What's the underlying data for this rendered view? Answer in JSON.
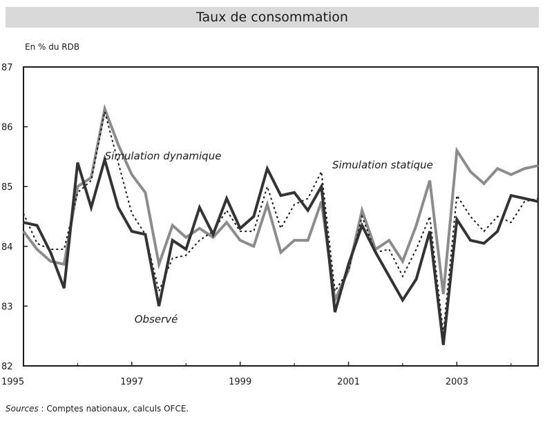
{
  "chart_data": {
    "type": "line",
    "title": "Taux de consommation",
    "ylabel": "En % du RDB",
    "xlabel": "",
    "ylim": [
      82,
      87
    ],
    "xlim": [
      1995,
      2004.5
    ],
    "yticks": [
      82,
      83,
      84,
      85,
      86,
      87
    ],
    "xticks": [
      1995,
      1997,
      1999,
      2001,
      2003
    ],
    "x": [
      1995.0,
      1995.25,
      1995.5,
      1995.75,
      1996.0,
      1996.25,
      1996.5,
      1996.75,
      1997.0,
      1997.25,
      1997.5,
      1997.75,
      1998.0,
      1998.25,
      1998.5,
      1998.75,
      1999.0,
      1999.25,
      1999.5,
      1999.75,
      2000.0,
      2000.25,
      2000.5,
      2000.75,
      2001.0,
      2001.25,
      2001.5,
      2001.75,
      2002.0,
      2002.25,
      2002.5,
      2002.75,
      2003.0,
      2003.25,
      2003.5,
      2003.75,
      2004.0,
      2004.25,
      2004.5
    ],
    "series": [
      {
        "name": "Observé",
        "color": "#333333",
        "style": "solid-thick",
        "values": [
          84.4,
          84.35,
          83.9,
          83.3,
          85.4,
          84.65,
          85.45,
          84.65,
          84.25,
          84.2,
          83.0,
          84.1,
          83.95,
          84.65,
          84.2,
          84.8,
          84.3,
          84.5,
          85.3,
          84.85,
          84.9,
          84.6,
          85.0,
          82.9,
          83.7,
          84.35,
          83.9,
          83.5,
          83.1,
          83.45,
          84.25,
          82.35,
          84.45,
          84.1,
          84.05,
          84.25,
          84.85,
          84.8,
          84.75
        ]
      },
      {
        "name": "Simulation dynamique",
        "color": "#8c8c8c",
        "style": "solid-thick",
        "values": [
          84.25,
          83.95,
          83.75,
          83.7,
          85.0,
          85.15,
          86.3,
          85.7,
          85.2,
          84.9,
          83.7,
          84.35,
          84.15,
          84.3,
          84.15,
          84.4,
          84.1,
          84.0,
          84.7,
          83.9,
          84.1,
          84.1,
          84.75,
          83.1,
          83.6,
          84.6,
          83.95,
          84.1,
          83.75,
          84.35,
          85.1,
          83.2,
          85.6,
          85.25,
          85.05,
          85.3,
          85.2,
          85.3,
          85.35
        ]
      },
      {
        "name": "Simulation statique",
        "color": "#1a1a1a",
        "style": "dotted",
        "values": [
          84.55,
          84.05,
          83.95,
          83.95,
          84.9,
          85.1,
          86.25,
          85.4,
          84.55,
          84.2,
          83.25,
          83.8,
          83.85,
          84.1,
          84.25,
          84.6,
          84.25,
          84.25,
          85.0,
          84.3,
          84.7,
          84.8,
          85.25,
          83.25,
          83.6,
          84.5,
          83.9,
          83.95,
          83.5,
          83.95,
          84.5,
          82.55,
          84.85,
          84.5,
          84.25,
          84.5,
          84.4,
          84.75,
          84.8
        ]
      }
    ],
    "annotations": [
      {
        "text": "Simulation dynamique",
        "x": 1996.5,
        "y": 85.45
      },
      {
        "text": "Simulation statique",
        "x": 2000.7,
        "y": 85.3
      },
      {
        "text": "Observé",
        "x": 1997.05,
        "y": 82.72
      }
    ]
  },
  "source": {
    "label": "Sources",
    "text": " : Comptes nationaux, calculs OFCE."
  }
}
